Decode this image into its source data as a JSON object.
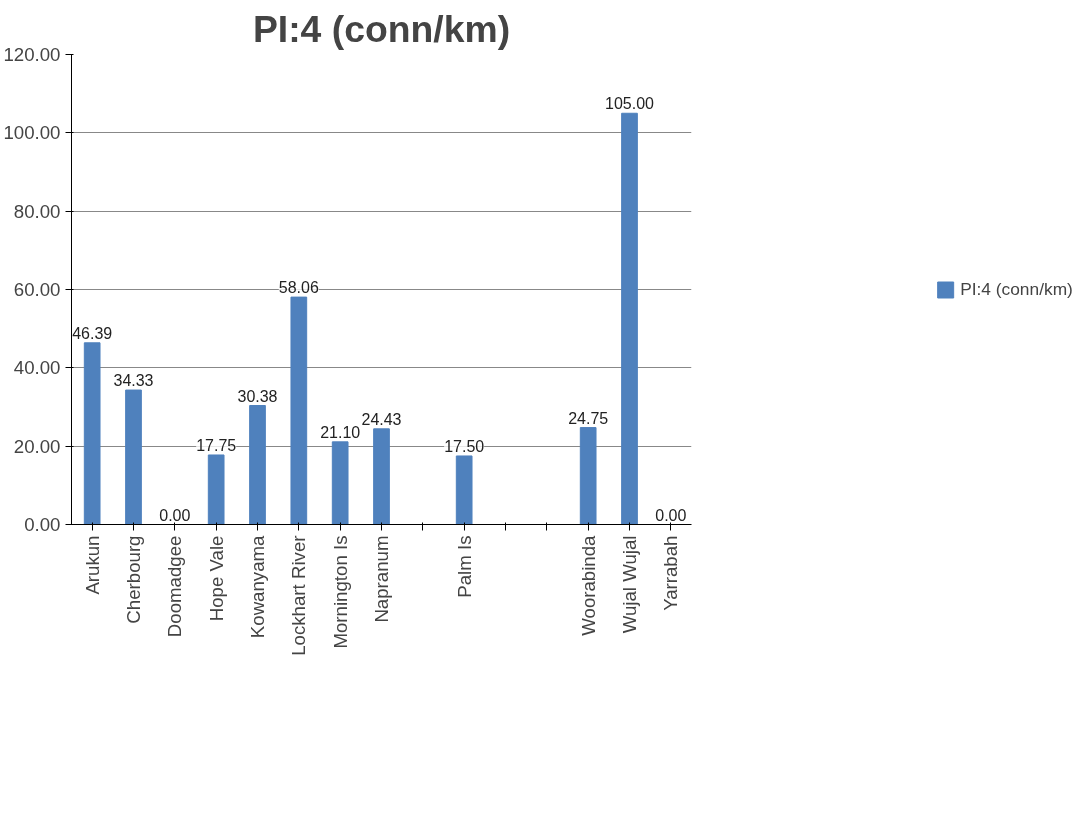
{
  "chart_data": {
    "type": "bar",
    "title": "PI:4 (conn/km)",
    "categories": [
      "Arukun",
      "Cherbourg",
      "Doomadgee",
      "Hope Vale",
      "Kowanyama",
      "Lockhart River",
      "Mornington Is",
      "Napranum",
      null,
      "Palm Is",
      null,
      null,
      "Woorabinda",
      "Wujal Wujal",
      "Yarrabah"
    ],
    "series": [
      {
        "name": "PI:4 (conn/km)",
        "color": "#4f81bd",
        "values": [
          46.39,
          34.33,
          0,
          17.75,
          30.38,
          58.06,
          21.1,
          24.43,
          null,
          17.5,
          null,
          null,
          24.75,
          105,
          0
        ],
        "value_labels": [
          "46.39",
          "34.33",
          "0.00",
          "17.75",
          "30.38",
          "58.06",
          "21.10",
          "24.43",
          null,
          "17.50",
          null,
          null,
          "24.75",
          "105.00",
          "0.00"
        ]
      }
    ],
    "ylim": [
      0,
      120
    ],
    "yticks": [
      {
        "value": 0,
        "label": "0.00"
      },
      {
        "value": 20,
        "label": "20.00"
      },
      {
        "value": 40,
        "label": "40.00"
      },
      {
        "value": 60,
        "label": "60.00"
      },
      {
        "value": 80,
        "label": "80.00"
      },
      {
        "value": 100,
        "label": "100.00"
      },
      {
        "value": 120,
        "label": "120.00"
      }
    ],
    "grid": "y",
    "legend": "right"
  }
}
